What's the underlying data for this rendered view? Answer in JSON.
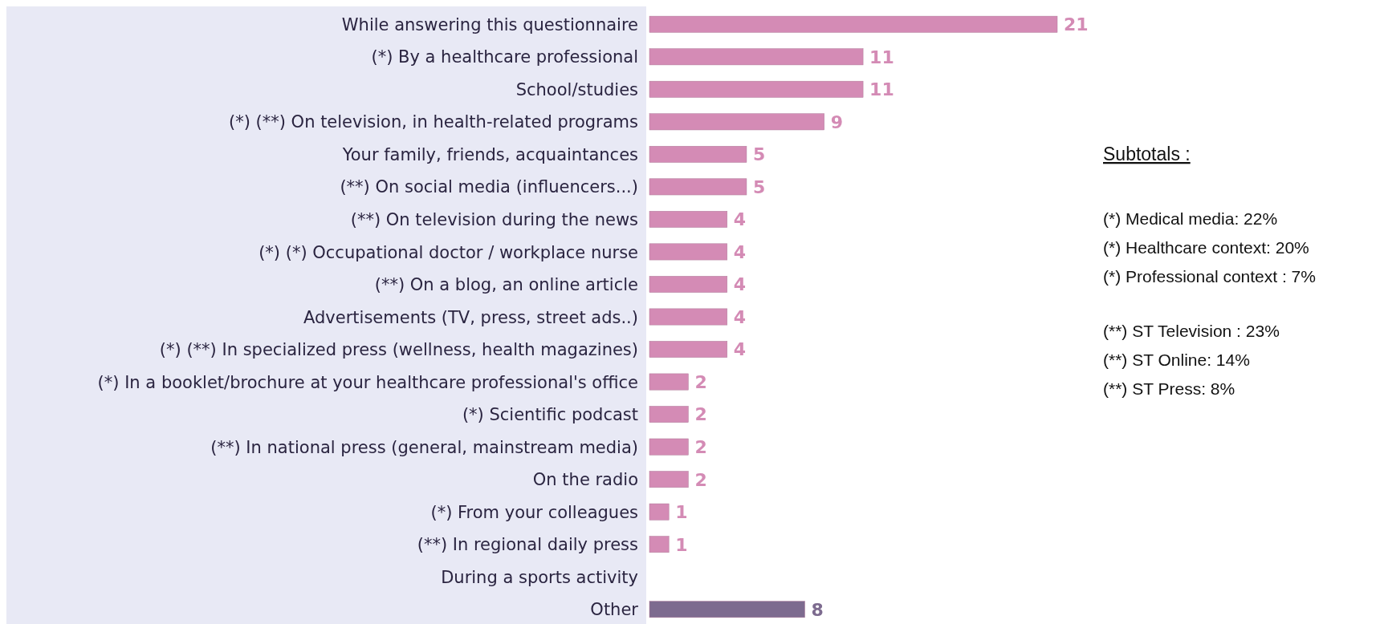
{
  "chart_data": {
    "type": "bar",
    "orientation": "horizontal",
    "categories": [
      "While answering this questionnaire",
      "(*) By a healthcare professional",
      "School/studies",
      "(*) (**) On television, in health-related programs",
      "Your family, friends, acquaintances",
      "(**) On social media (influencers...)",
      "(**) On television during the news",
      "(*) (*) Occupational doctor / workplace nurse",
      "(**) On a blog, an online article",
      "Advertisements (TV, press, street ads..)",
      "(*) (**) In specialized press (wellness, health magazines)",
      "(*) In a booklet/brochure at your healthcare professional's office",
      "(*)  Scientific podcast",
      "(**) In national press (general, mainstream media)",
      "On the radio",
      "(*)  From your colleagues",
      "(**) In regional daily press",
      "During a sports activity",
      "Other"
    ],
    "values": [
      21,
      11,
      11,
      9,
      5,
      5,
      4,
      4,
      4,
      4,
      4,
      2,
      2,
      2,
      2,
      1,
      1,
      null,
      8
    ],
    "colors": [
      "#d48bb5",
      "#d48bb5",
      "#d48bb5",
      "#d48bb5",
      "#d48bb5",
      "#d48bb5",
      "#d48bb5",
      "#d48bb5",
      "#d48bb5",
      "#d48bb5",
      "#d48bb5",
      "#d48bb5",
      "#d48bb5",
      "#d48bb5",
      "#d48bb5",
      "#d48bb5",
      "#d48bb5",
      null,
      "#7d6b8f"
    ],
    "data_labels": true,
    "annotations": [
      "Subtotals :",
      "(*) Medical media: 22%",
      "(*) Healthcare context: 20%",
      "(*) Professional context : 7%",
      "(**) ST Television :  23%",
      "(**) ST Online: 14%",
      "(**) ST Press: 8%"
    ]
  }
}
